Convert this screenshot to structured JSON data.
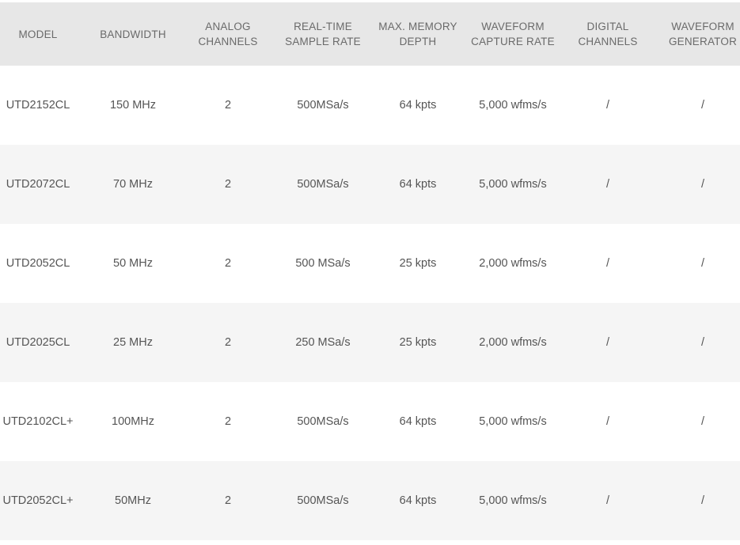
{
  "table": {
    "header": [
      [
        "MODEL"
      ],
      [
        "BANDWIDTH"
      ],
      [
        "ANALOG",
        "CHANNELS"
      ],
      [
        "REAL-TIME",
        "SAMPLE RATE"
      ],
      [
        "MAX. MEMORY",
        "DEPTH"
      ],
      [
        "WAVEFORM",
        "CAPTURE RATE"
      ],
      [
        "DIGITAL",
        "CHANNELS"
      ],
      [
        "WAVEFORM",
        "GENERATOR"
      ]
    ],
    "rows": [
      [
        "UTD2152CL",
        "150 MHz",
        "2",
        "500MSa/s",
        "64 kpts",
        "5,000 wfms/s",
        "/",
        "/"
      ],
      [
        "UTD2072CL",
        "70 MHz",
        "2",
        "500MSa/s",
        "64 kpts",
        "5,000 wfms/s",
        "/",
        "/"
      ],
      [
        "UTD2052CL",
        "50 MHz",
        "2",
        "500 MSa/s",
        "25 kpts",
        "2,000 wfms/s",
        "/",
        "/"
      ],
      [
        "UTD2025CL",
        "25 MHz",
        "2",
        "250 MSa/s",
        "25 kpts",
        "2,000 wfms/s",
        "/",
        "/"
      ],
      [
        "UTD2102CL+",
        "100MHz",
        "2",
        "500MSa/s",
        "64 kpts",
        "5,000 wfms/s",
        "/",
        "/"
      ],
      [
        "UTD2052CL+",
        "50MHz",
        "2",
        "500MSa/s",
        "64 kpts",
        "5,000 wfms/s",
        "/",
        "/"
      ]
    ]
  }
}
